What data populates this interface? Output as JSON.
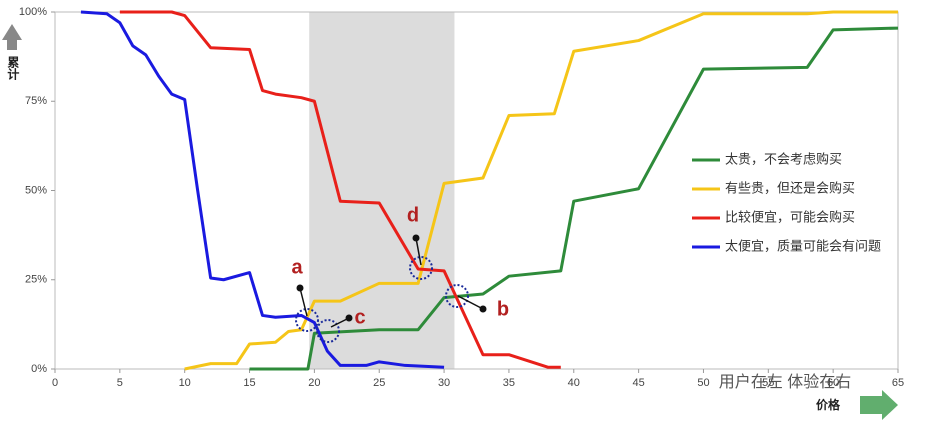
{
  "chart_data": {
    "type": "line",
    "ylabel": "累计",
    "xlabel": "价格",
    "xlim": [
      0,
      65
    ],
    "ylim": [
      0,
      100
    ],
    "xticks": [
      0,
      5,
      10,
      15,
      20,
      25,
      30,
      35,
      40,
      45,
      50,
      55,
      60,
      65
    ],
    "yticks": [
      {
        "value": 0,
        "label": "0%"
      },
      {
        "value": 25,
        "label": "25%"
      },
      {
        "value": 50,
        "label": "50%"
      },
      {
        "value": 75,
        "label": "75%"
      },
      {
        "value": 100,
        "label": "100%"
      }
    ],
    "shaded_range": [
      19.6,
      30.8
    ],
    "series": [
      {
        "name": "太贵，不会考虑购买",
        "color": "#2e8b3a",
        "x": [
          15,
          19.5,
          20,
          25,
          28,
          30,
          33,
          35,
          39,
          40,
          45,
          50,
          58,
          60,
          65
        ],
        "values": [
          0,
          0,
          10,
          11,
          11,
          20,
          21,
          26,
          27.5,
          47,
          50.5,
          84,
          84.5,
          95,
          95.5
        ]
      },
      {
        "name": "有些贵，但还是会购买",
        "color": "#f5c518",
        "x": [
          10,
          12,
          14,
          15,
          17,
          18,
          19,
          20,
          22,
          25,
          28,
          30,
          33,
          35,
          38.5,
          40,
          45,
          50,
          58,
          60,
          65
        ],
        "values": [
          0,
          1.5,
          1.5,
          7,
          7.5,
          10.5,
          11,
          19,
          19,
          24,
          24,
          52,
          53.5,
          71,
          71.5,
          89,
          92,
          99.5,
          99.5,
          100,
          100
        ]
      },
      {
        "name": "比较便宜，可能会购买",
        "color": "#e8201a",
        "x": [
          5,
          9,
          10,
          12,
          15,
          16,
          17,
          19,
          20,
          22,
          25,
          28,
          30,
          33,
          35,
          38,
          39
        ],
        "values": [
          100,
          100,
          99,
          90,
          89.5,
          78,
          77,
          76,
          75,
          47,
          46.5,
          28,
          27.5,
          4,
          4,
          0.5,
          0.5
        ]
      },
      {
        "name": "太便宜，质量可能会有问题",
        "color": "#1a1ae0",
        "x": [
          2,
          4,
          5,
          6,
          7,
          8,
          9,
          10,
          11,
          12,
          13,
          15,
          16,
          17,
          19,
          20,
          21,
          22,
          24,
          25,
          27,
          30
        ],
        "values": [
          100,
          99.5,
          97,
          90.5,
          88,
          82,
          77,
          75.5,
          50,
          25.5,
          25,
          27,
          15,
          14.5,
          15,
          13,
          5,
          1,
          1,
          2,
          1,
          0.5
        ]
      }
    ],
    "annotations": [
      "a",
      "b",
      "c",
      "d"
    ],
    "watermark": "用户在左 体验在右"
  }
}
